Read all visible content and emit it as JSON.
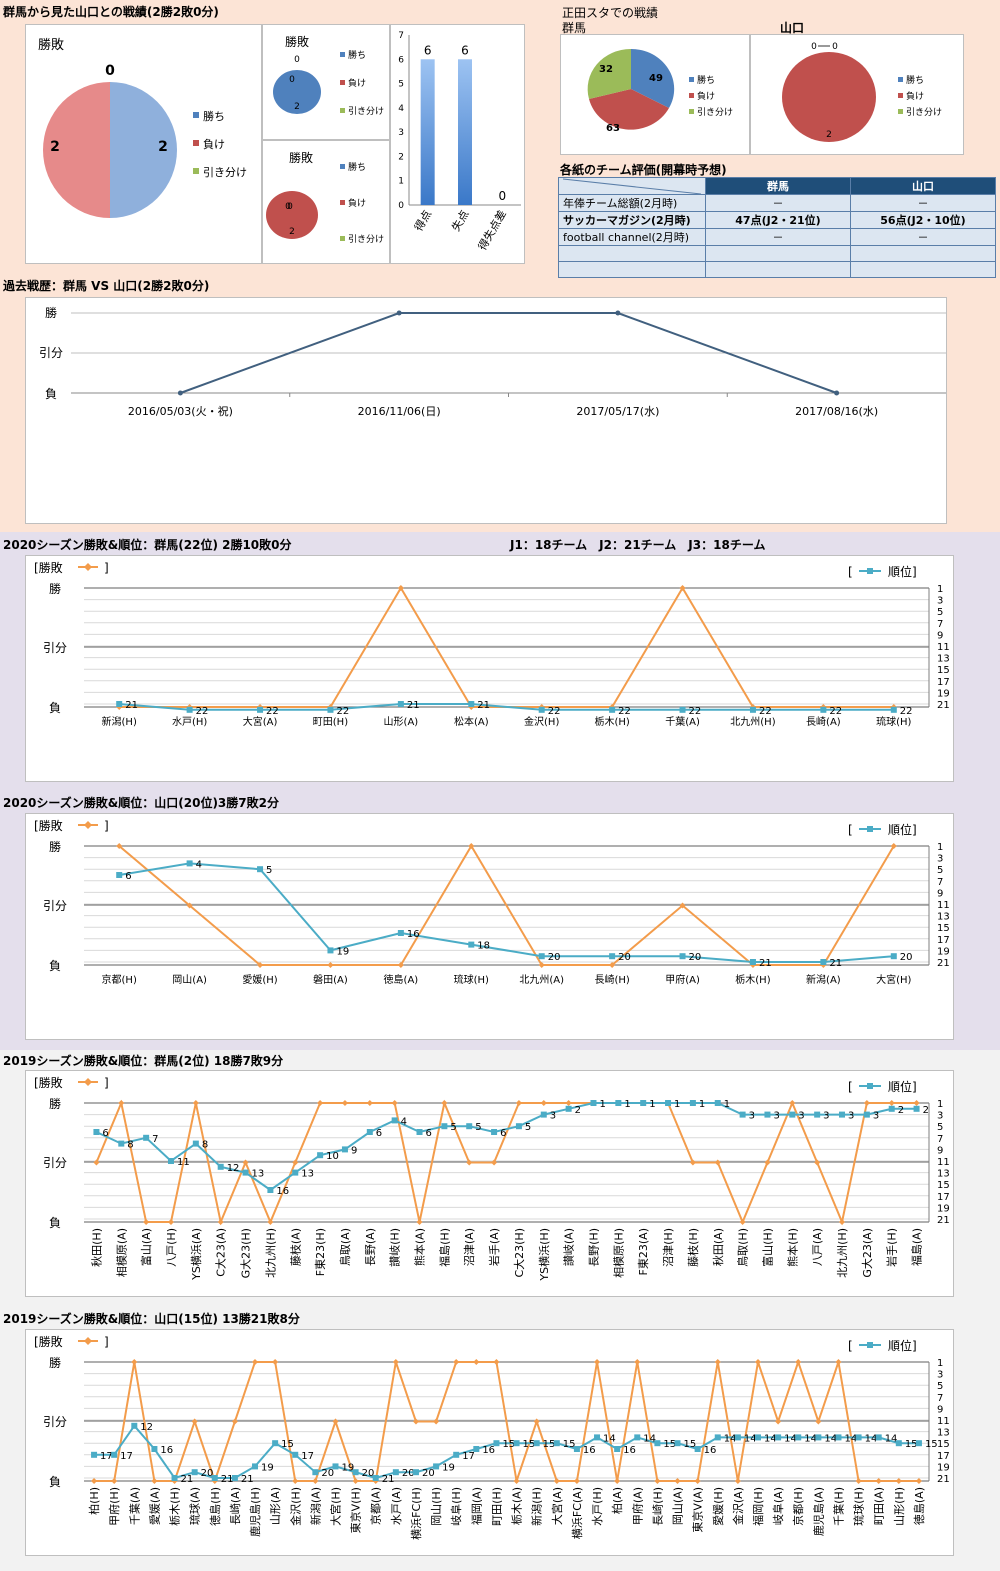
{
  "top_left": {
    "title": "群馬から見た山口との戦績(2勝2敗0分)",
    "pie": {
      "title": "勝敗",
      "top_value": "0",
      "left_value": "2",
      "right_value": "2"
    },
    "small_top": {
      "title": "勝敗",
      "label_top": "0",
      "label_bottom": "2"
    },
    "small_bottom": {
      "title": "勝敗",
      "label_a": "0",
      "label_b": "0",
      "label_bottom": "2"
    },
    "legend": [
      "勝ち",
      "負け",
      "引き分け"
    ],
    "colors": {
      "win": "#4f81bd",
      "loss": "#c0504d",
      "draw": "#9bbb59"
    }
  },
  "goals_chart": {
    "categories": [
      "得点",
      "失点",
      "得失点差"
    ],
    "values": [
      6,
      6,
      0
    ],
    "y_ticks": [
      "0",
      "1",
      "2",
      "3",
      "4",
      "5",
      "6",
      "7"
    ]
  },
  "home_record": {
    "title": "正田スタでの戦績",
    "gunma_label": "群馬",
    "yamaguchi_label": "山口",
    "gunma_pie": {
      "win": "49",
      "loss": "63",
      "draw": "32"
    },
    "yamaguchi_pie": {
      "label_a": "0",
      "label_b": "0",
      "loss": "2"
    },
    "legend": [
      "勝ち",
      "負け",
      "引き分け"
    ]
  },
  "evaluation": {
    "title": "各紙のチーム評価(開幕時予想)",
    "headers": [
      "",
      "群馬",
      "山口"
    ],
    "rows": [
      [
        "年俸チーム総額(2月時)",
        "－",
        "－"
      ],
      [
        "サッカーマガジン(2月時)",
        "47点(J2・21位)",
        "56点(J2・10位)"
      ],
      [
        "football channel(2月時)",
        "－",
        "－"
      ],
      [
        "",
        "",
        ""
      ],
      [
        "",
        "",
        ""
      ]
    ]
  },
  "past": {
    "title": "過去戦歴：群馬 VS 山口(2勝2敗0分)",
    "y_labels": [
      "勝",
      "引分",
      "負"
    ],
    "dates": [
      "2016/05/03(火・祝)",
      "2016/11/06(日)",
      "2017/05/17(水)",
      "2017/08/16(水)"
    ]
  },
  "labels": {
    "y_win": "勝",
    "y_draw": "引分",
    "y_loss": "負",
    "legend_left": "[勝敗",
    "legend_right_open": "[",
    "legend_right": "順位]",
    "bracket_close": "]",
    "rank_ticks": [
      "1",
      "3",
      "5",
      "7",
      "9",
      "11",
      "13",
      "15",
      "17",
      "19",
      "21"
    ]
  },
  "charts": [
    {
      "title": "2020シーズン勝敗&順位：群馬(22位) 2勝10敗0分",
      "subtitle": "J1：18チーム　J2：21チーム　J3：18チーム",
      "categories": [
        "新潟(H)",
        "水戸(H)",
        "大宮(A)",
        "町田(H)",
        "山形(A)",
        "松本(A)",
        "金沢(H)",
        "栃木(H)",
        "千葉(A)",
        "北九州(H)",
        "長崎(A)",
        "琉球(H)"
      ],
      "results": [
        0,
        0,
        0,
        0,
        1,
        0,
        0,
        0,
        1,
        0,
        0,
        0
      ],
      "ranks": [
        21,
        22,
        22,
        22,
        21,
        21,
        22,
        22,
        22,
        22,
        22,
        22
      ]
    },
    {
      "title": "2020シーズン勝敗&順位：山口(20位)3勝7敗2分",
      "subtitle": "",
      "categories": [
        "京都(H)",
        "岡山(A)",
        "愛媛(H)",
        "磐田(A)",
        "徳島(A)",
        "琉球(H)",
        "北九州(A)",
        "長崎(H)",
        "甲府(A)",
        "栃木(H)",
        "新潟(A)",
        "大宮(H)"
      ],
      "results": [
        1,
        0.5,
        0,
        0,
        0,
        1,
        0,
        0,
        0.5,
        0,
        0,
        1
      ],
      "ranks": [
        6,
        4,
        5,
        19,
        16,
        18,
        20,
        20,
        20,
        21,
        21,
        20
      ]
    },
    {
      "title": "2019シーズン勝敗&順位：群馬(2位) 18勝7敗9分",
      "subtitle": "",
      "categories": [
        "秋田(H)",
        "相模原(A)",
        "富山(A)",
        "八戸(H)",
        "YS横浜(A)",
        "C大23(A)",
        "G大23(H)",
        "北九州(H)",
        "藤枝(A)",
        "F東23(H)",
        "鳥取(A)",
        "長野(A)",
        "讃岐(H)",
        "熊本(A)",
        "福島(H)",
        "沼津(A)",
        "岩手(A)",
        "C大23(H)",
        "YS横浜(H)",
        "讃岐(A)",
        "長野(H)",
        "相模原(H)",
        "F東23(A)",
        "沼津(H)",
        "藤枝(H)",
        "秋田(A)",
        "鳥取(H)",
        "富山(H)",
        "熊本(H)",
        "八戸(A)",
        "北九州(H)",
        "G大23(A)",
        "岩手(H)",
        "福島(A)"
      ],
      "results": [
        0.5,
        1,
        0,
        0,
        1,
        0,
        0.5,
        0,
        0.5,
        1,
        1,
        1,
        1,
        0,
        1,
        0.5,
        0.5,
        1,
        1,
        1,
        1,
        1,
        1,
        1,
        0.5,
        0.5,
        0,
        0.5,
        1,
        0.5,
        0,
        1,
        1,
        1
      ],
      "ranks": [
        6,
        8,
        7,
        11,
        8,
        12,
        13,
        16,
        13,
        10,
        9,
        6,
        4,
        6,
        5,
        5,
        6,
        5,
        3,
        2,
        1,
        1,
        1,
        1,
        1,
        1,
        3,
        3,
        3,
        3,
        3,
        3,
        2,
        2
      ]
    },
    {
      "title": "2019シーズン勝敗&順位：山口(15位) 13勝21敗8分",
      "subtitle": "",
      "categories": [
        "柏(H)",
        "甲府(H)",
        "千葉(A)",
        "愛媛(A)",
        "栃木(H)",
        "琉球(A)",
        "徳島(H)",
        "長崎(A)",
        "鹿児島(H)",
        "山形(A)",
        "金沢(H)",
        "新潟(A)",
        "大宮(H)",
        "東京V(H)",
        "京都(A)",
        "水戸(A)",
        "横浜FC(H)",
        "岡山(H)",
        "岐阜(H)",
        "福岡(A)",
        "町田(H)",
        "栃木(A)",
        "新潟(H)",
        "大宮(A)",
        "横浜FC(A)",
        "水戸(H)",
        "柏(A)",
        "甲府(A)",
        "長崎(H)",
        "岡山(A)",
        "東京V(A)",
        "愛媛(H)",
        "金沢(A)",
        "福岡(H)",
        "岐阜(A)",
        "京都(H)",
        "鹿児島(A)",
        "千葉(H)",
        "琉球(H)",
        "町田(A)",
        "山形(H)",
        "徳島(A)"
      ],
      "results": [
        0,
        0,
        1,
        0,
        0,
        0.5,
        0,
        0.5,
        1,
        1,
        0,
        0,
        0.5,
        0,
        0,
        1,
        0.5,
        0.5,
        1,
        1,
        1,
        0,
        0.5,
        0,
        0,
        1,
        0,
        1,
        0,
        0,
        0,
        1,
        0,
        1,
        0.5,
        1,
        0.5,
        1,
        0,
        0,
        0,
        0
      ],
      "ranks": [
        17,
        17,
        12,
        16,
        21,
        20,
        21,
        21,
        19,
        15,
        17,
        20,
        19,
        20,
        21,
        20,
        20,
        19,
        17,
        16,
        15,
        15,
        15,
        15,
        16,
        14,
        16,
        14,
        15,
        15,
        16,
        14,
        14,
        14,
        14,
        14,
        14,
        14,
        14,
        14,
        15,
        15
      ]
    }
  ],
  "chart_data": [
    {
      "type": "bar",
      "categories": [
        "得点",
        "失点",
        "得失点差"
      ],
      "values": [
        6,
        6,
        0
      ],
      "ylim": [
        0,
        7
      ]
    },
    {
      "type": "line",
      "title": "過去戦歴：群馬 VS 山口(2勝2敗0分)",
      "x": [
        "2016/05/03(火・祝)",
        "2016/11/06(日)",
        "2017/05/17(水)",
        "2017/08/16(水)"
      ],
      "values": [
        0,
        1,
        1,
        0
      ],
      "y_categories": [
        "負",
        "引分",
        "勝"
      ]
    }
  ]
}
